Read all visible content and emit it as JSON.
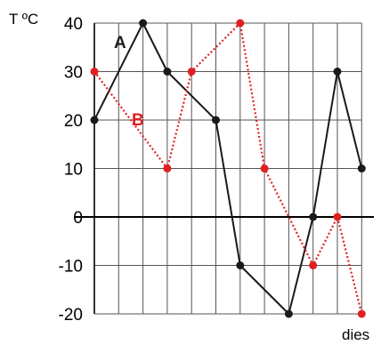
{
  "chart_data": {
    "type": "line",
    "ylabel": "T ºC",
    "xlabel": "dies",
    "ylim": [
      -20,
      40
    ],
    "yticks": [
      40,
      30,
      20,
      10,
      0,
      -10,
      -20
    ],
    "x": [
      0,
      1,
      2,
      3,
      4,
      5,
      6,
      7,
      8,
      9,
      10,
      11
    ],
    "grid": true,
    "series": [
      {
        "name": "A",
        "color": "#1a1a1a",
        "style": "solid",
        "x": [
          0,
          2,
          3,
          5,
          6,
          8,
          9,
          10,
          11
        ],
        "values": [
          20,
          40,
          30,
          20,
          -10,
          -20,
          0,
          30,
          10
        ]
      },
      {
        "name": "B",
        "color": "#e02020",
        "style": "dotted",
        "x": [
          0,
          3,
          4,
          6,
          7,
          9,
          10,
          11
        ],
        "values": [
          30,
          10,
          30,
          40,
          10,
          -10,
          0,
          -20
        ]
      }
    ]
  }
}
